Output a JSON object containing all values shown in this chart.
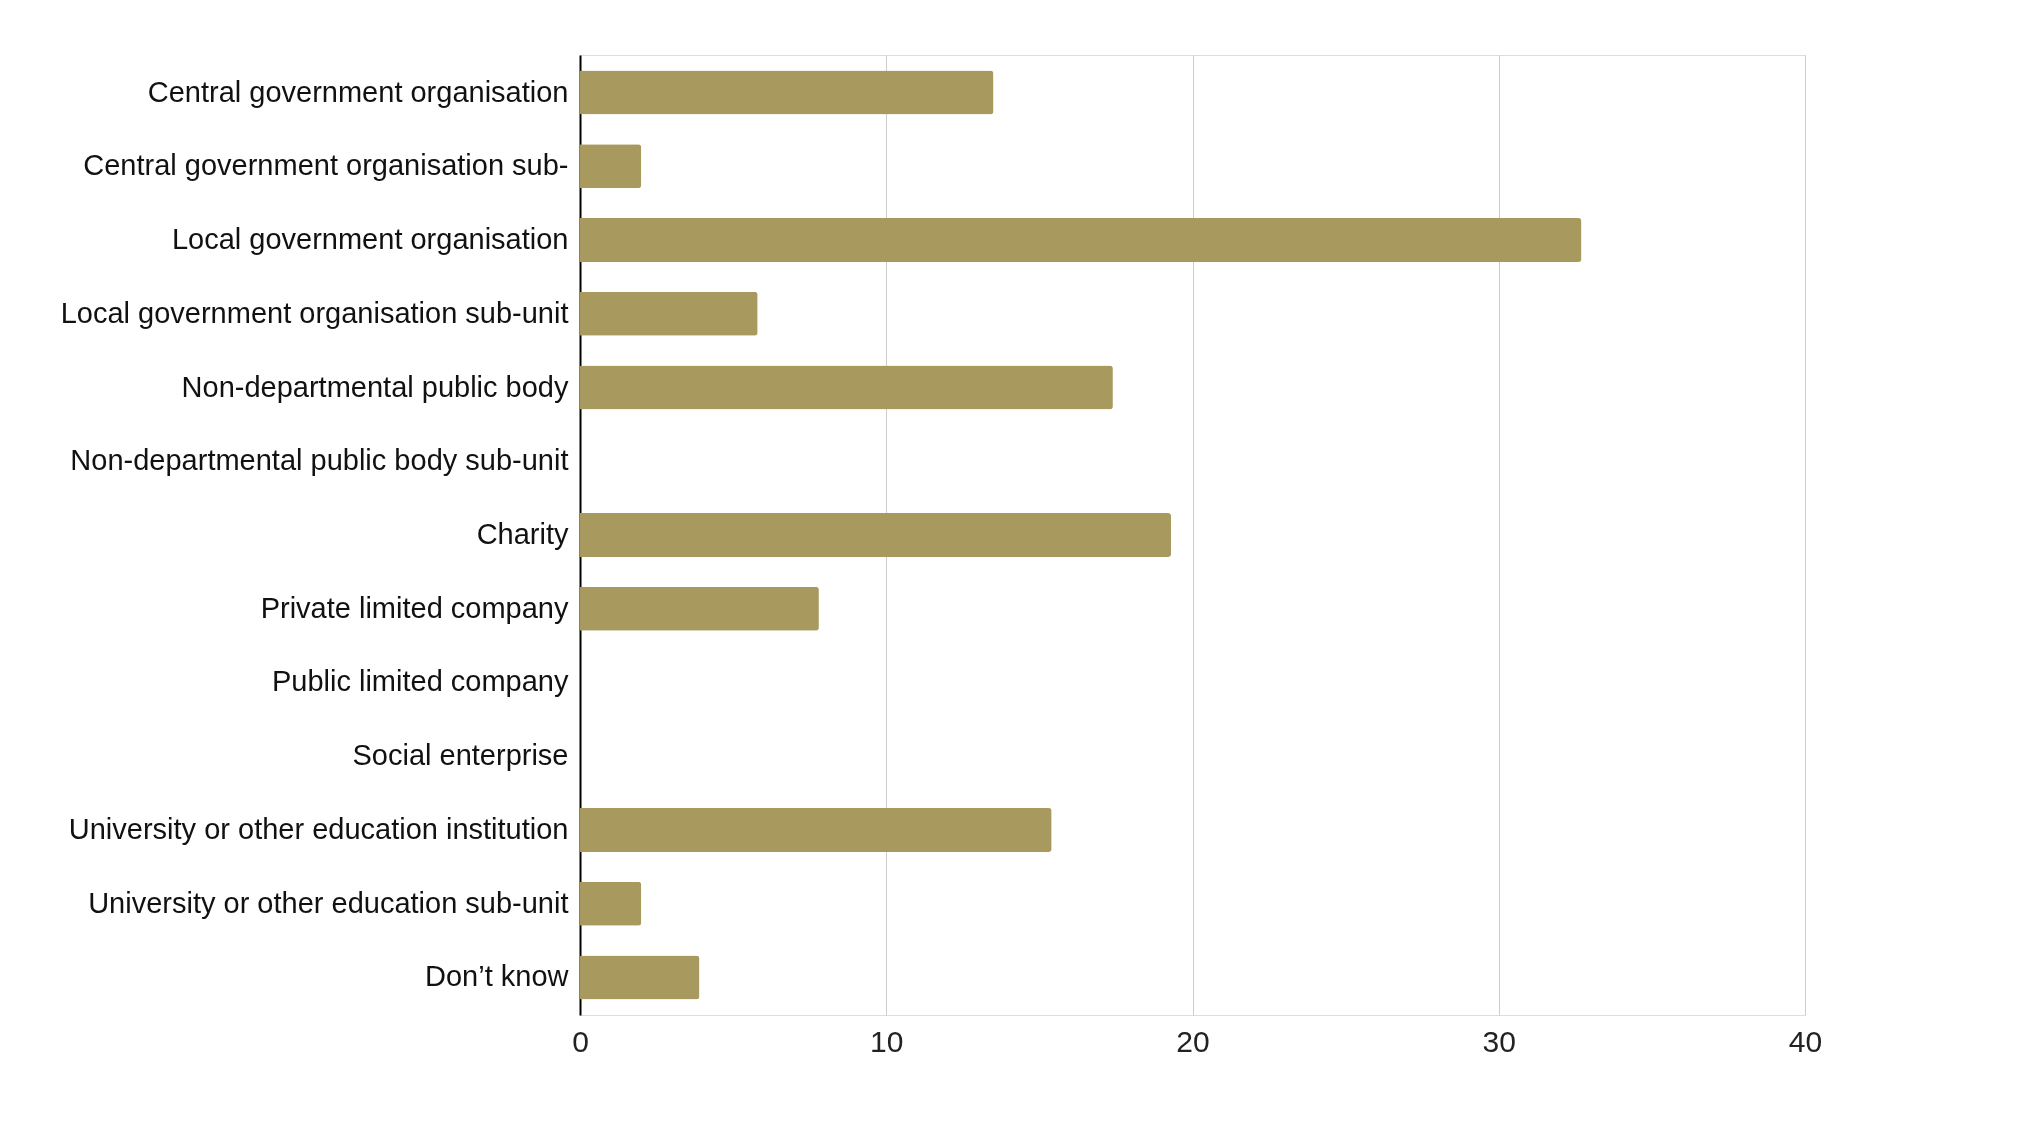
{
  "chart_data": {
    "type": "bar",
    "orientation": "horizontal",
    "categories": [
      "Central government organisation",
      "Central government organisation sub-",
      "Local government organisation",
      "Local government organisation sub-unit",
      "Non-departmental public body",
      "Non-departmental public body sub-unit",
      "Charity",
      "Private limited company",
      "Public limited company",
      "Social enterprise",
      "University or other education institution",
      "University or other education sub-unit",
      "Don’t know"
    ],
    "values": [
      13.5,
      2,
      32.7,
      5.8,
      17.4,
      0,
      19.3,
      7.8,
      0,
      0,
      15.4,
      2,
      3.9
    ],
    "color": "#a89a5e",
    "xlim": [
      0,
      40
    ],
    "xticks": [
      0,
      10,
      20,
      30,
      40
    ],
    "grid": "x"
  }
}
